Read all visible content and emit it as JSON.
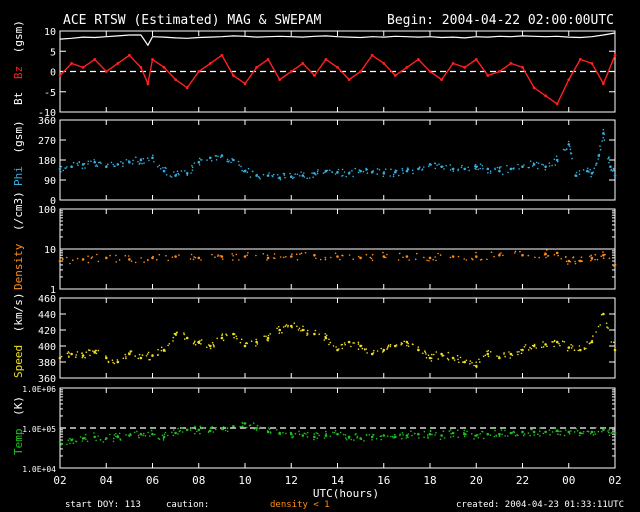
{
  "header": {
    "title": "ACE RTSW (Estimated) MAG & SWEPAM",
    "begin": "Begin: 2004-04-22 02:00:00UTC"
  },
  "footer": {
    "start_doy": "start DOY: 113",
    "caution": "caution:",
    "density_note": "density < 1",
    "created": "created: 2004-04-23 01:33:11UTC"
  },
  "colors": {
    "background": "#000000",
    "axes": "#ffffff",
    "bt": "#ffffff",
    "bz": "#ff2020",
    "phi": "#33b0e0",
    "density": "#ff8c1a",
    "speed": "#f0e020",
    "temp": "#20c020"
  },
  "chart_data": {
    "type": "scatter",
    "xlabel": "UTC(hours)",
    "x_tick_labels": [
      "02",
      "04",
      "06",
      "08",
      "10",
      "12",
      "14",
      "16",
      "18",
      "20",
      "22",
      "00",
      "02"
    ],
    "xlim": [
      0,
      24
    ],
    "panels": [
      {
        "id": "mag",
        "ylabel_parts": [
          "Bt",
          "Bz",
          "(gsm)"
        ],
        "ylim": [
          -10,
          10
        ],
        "yticks": [
          10,
          5,
          0,
          -5,
          -10
        ],
        "ytick_labels": [
          "10",
          "5",
          "0",
          "-5",
          "-10"
        ],
        "ref_line": {
          "y": 0,
          "style": "dashed"
        },
        "series": [
          {
            "name": "Bt",
            "color_key": "bt",
            "style": "line",
            "x": [
              0,
              0.5,
              1,
              1.5,
              2,
              2.5,
              3,
              3.5,
              3.8,
              4,
              4.5,
              5,
              5.5,
              6,
              6.5,
              7,
              7.5,
              8,
              8.5,
              9,
              9.5,
              10,
              10.5,
              11,
              11.5,
              12,
              12.5,
              13,
              13.5,
              14,
              14.5,
              15,
              15.5,
              16,
              16.5,
              17,
              17.5,
              18,
              18.5,
              19,
              19.5,
              20,
              20.5,
              21,
              21.5,
              22,
              22.5,
              23,
              23.5,
              24
            ],
            "y": [
              8,
              8.2,
              8.5,
              8.4,
              8.6,
              8.8,
              9,
              9,
              6.5,
              8.6,
              8.5,
              8.3,
              8.2,
              8.4,
              8.5,
              8.6,
              8.8,
              8.7,
              8.5,
              8.6,
              8.7,
              8.6,
              8.5,
              8.7,
              8.8,
              8.6,
              8.5,
              8.4,
              8.6,
              8.5,
              8.7,
              8.6,
              8.5,
              8.6,
              8.4,
              8.5,
              8.3,
              8.6,
              8.5,
              8.7,
              8.6,
              8.8,
              8.7,
              8.6,
              8.7,
              8.5,
              8.4,
              8.6,
              9,
              9.5
            ]
          },
          {
            "name": "Bz",
            "color_key": "bz",
            "style": "line",
            "x": [
              0,
              0.5,
              1,
              1.5,
              2,
              2.5,
              3,
              3.5,
              3.8,
              4,
              4.5,
              5,
              5.5,
              6,
              6.5,
              7,
              7.5,
              8,
              8.5,
              9,
              9.5,
              10,
              10.5,
              11,
              11.5,
              12,
              12.5,
              13,
              13.5,
              14,
              14.5,
              15,
              15.5,
              16,
              16.5,
              17,
              17.5,
              18,
              18.5,
              19,
              19.5,
              20,
              20.5,
              21,
              21.5,
              22,
              22.5,
              23,
              23.5,
              24
            ],
            "y": [
              -1,
              2,
              1,
              3,
              0,
              2,
              4,
              1,
              -3,
              3,
              1,
              -2,
              -4,
              0,
              2,
              4,
              -1,
              -3,
              1,
              3,
              -2,
              0,
              2,
              -1,
              3,
              1,
              -2,
              0,
              4,
              2,
              -1,
              1,
              3,
              0,
              -2,
              2,
              1,
              3,
              -1,
              0,
              2,
              1,
              -4,
              -6,
              -8,
              -2,
              3,
              2,
              -3,
              4
            ]
          }
        ]
      },
      {
        "id": "phi",
        "ylabel_parts": [
          "Phi",
          "(gsm)"
        ],
        "ylim": [
          0,
          360
        ],
        "yticks": [
          360,
          270,
          180,
          90,
          0
        ],
        "ytick_labels": [
          "360",
          "270",
          "180",
          "90",
          "0"
        ],
        "series": [
          {
            "name": "Phi",
            "color_key": "phi",
            "style": "dots",
            "x": [
              0,
              0.5,
              1,
              1.5,
              2,
              2.5,
              3,
              3.5,
              4,
              4.5,
              5,
              5.5,
              6,
              6.5,
              7,
              7.5,
              8,
              8.5,
              9,
              9.5,
              10,
              10.5,
              11,
              11.5,
              12,
              12.5,
              13,
              13.5,
              14,
              14.5,
              15,
              15.5,
              16,
              16.5,
              17,
              17.5,
              18,
              18.5,
              19,
              19.5,
              20,
              20.5,
              21,
              21.5,
              22,
              22.3,
              22.8,
              23,
              23.3,
              23.5,
              23.8,
              24
            ],
            "y": [
              140,
              150,
              160,
              170,
              150,
              160,
              170,
              180,
              190,
              130,
              110,
              120,
              170,
              190,
              200,
              180,
              130,
              110,
              110,
              100,
              105,
              110,
              120,
              130,
              125,
              120,
              130,
              125,
              120,
              125,
              130,
              140,
              160,
              150,
              140,
              140,
              150,
              140,
              130,
              140,
              150,
              160,
              150,
              180,
              250,
              110,
              130,
              120,
              200,
              300,
              150,
              110
            ]
          }
        ]
      },
      {
        "id": "density",
        "ylabel_parts": [
          "Density",
          "(/cm3)"
        ],
        "ylim": [
          1,
          100
        ],
        "log": true,
        "yticks": [
          100,
          10,
          1
        ],
        "ytick_labels": [
          "100",
          "10",
          "1"
        ],
        "ref_line": {
          "y": 10,
          "style": "solid"
        },
        "series": [
          {
            "name": "Density",
            "color_key": "density",
            "style": "dots",
            "x": [
              0,
              1,
              2,
              3,
              4,
              5,
              6,
              7,
              8,
              9,
              10,
              11,
              12,
              13,
              14,
              15,
              16,
              17,
              18,
              19,
              20,
              21,
              21.5,
              22,
              22.5,
              23,
              23.5,
              24
            ],
            "y": [
              5,
              5.5,
              6,
              5.5,
              6,
              6.5,
              6,
              6.5,
              6.5,
              6,
              6.5,
              7,
              6.5,
              6,
              6.5,
              6.5,
              6,
              6.5,
              6.5,
              7,
              7,
              7.5,
              8,
              5,
              5,
              6,
              7,
              4
            ]
          }
        ]
      },
      {
        "id": "speed",
        "ylabel_parts": [
          "Speed",
          "(km/s)"
        ],
        "ylim": [
          360,
          460
        ],
        "yticks": [
          460,
          440,
          420,
          400,
          380,
          360
        ],
        "ytick_labels": [
          "460",
          "440",
          "420",
          "400",
          "380",
          "360"
        ],
        "series": [
          {
            "name": "Speed",
            "color_key": "speed",
            "style": "dots",
            "x": [
              0,
              0.5,
              1,
              1.5,
              2,
              2.5,
              3,
              3.5,
              4,
              4.5,
              5,
              5.5,
              6,
              6.5,
              7,
              7.5,
              8,
              8.5,
              9,
              9.5,
              10,
              10.5,
              11,
              11.5,
              12,
              12.5,
              13,
              13.5,
              14,
              14.5,
              15,
              15.5,
              16,
              16.5,
              17,
              17.5,
              18,
              18.5,
              19,
              19.5,
              20,
              20.5,
              21,
              21.5,
              22,
              22.5,
              23,
              23.5,
              24
            ],
            "y": [
              385,
              390,
              388,
              392,
              385,
              380,
              390,
              385,
              388,
              395,
              415,
              410,
              405,
              400,
              410,
              415,
              400,
              405,
              410,
              420,
              425,
              420,
              415,
              410,
              395,
              405,
              400,
              390,
              395,
              400,
              405,
              395,
              385,
              390,
              385,
              380,
              375,
              390,
              385,
              390,
              395,
              400,
              402,
              405,
              398,
              395,
              405,
              440,
              395
            ]
          }
        ]
      },
      {
        "id": "temp",
        "ylabel_parts": [
          "Temp",
          "(K)"
        ],
        "ylim": [
          10000,
          1000000
        ],
        "log": true,
        "yticks": [
          1000000,
          100000,
          10000
        ],
        "ytick_labels": [
          "1.0E+06",
          "1.0E+05",
          "1.0E+04"
        ],
        "ref_line": {
          "y": 100000,
          "style": "dashed"
        },
        "series": [
          {
            "name": "Temp",
            "color_key": "temp",
            "style": "dots",
            "x": [
              0,
              0.5,
              1,
              1.5,
              2,
              2.5,
              3,
              3.5,
              4,
              4.5,
              5,
              5.5,
              6,
              6.5,
              7,
              7.5,
              8,
              8.5,
              9,
              9.5,
              10,
              10.5,
              11,
              11.5,
              12,
              12.5,
              13,
              13.5,
              14,
              14.5,
              15,
              15.5,
              16,
              16.5,
              17,
              17.5,
              18,
              18.5,
              19,
              19.5,
              20,
              20.5,
              21,
              21.5,
              22,
              22.5,
              23,
              23.5,
              24
            ],
            "y": [
              45000,
              50000,
              55000,
              60000,
              55000,
              60000,
              65000,
              70000,
              70000,
              60000,
              75000,
              90000,
              90000,
              85000,
              95000,
              110000,
              130000,
              100000,
              80000,
              75000,
              70000,
              65000,
              60000,
              65000,
              70000,
              60000,
              55000,
              60000,
              65000,
              60000,
              65000,
              70000,
              70000,
              65000,
              75000,
              70000,
              65000,
              70000,
              70000,
              75000,
              80000,
              80000,
              80000,
              85000,
              80000,
              75000,
              80000,
              90000,
              75000
            ]
          }
        ]
      }
    ]
  }
}
